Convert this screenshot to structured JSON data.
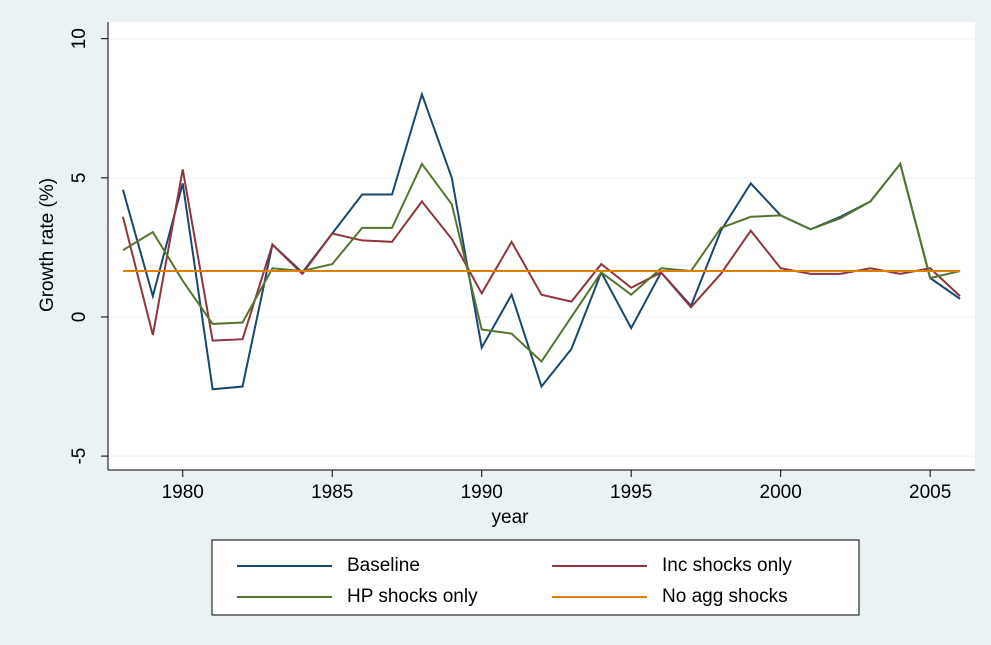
{
  "chart_data": {
    "type": "line",
    "x_label": "year",
    "y_label": "Growth rate (%)",
    "x": [
      1978,
      1979,
      1980,
      1981,
      1982,
      1983,
      1984,
      1985,
      1986,
      1987,
      1988,
      1989,
      1990,
      1991,
      1992,
      1993,
      1994,
      1995,
      1996,
      1997,
      1998,
      1999,
      2000,
      2001,
      2002,
      2003,
      2004,
      2005,
      2006
    ],
    "series": [
      {
        "name": "Baseline",
        "color": "#1a476f",
        "values": [
          4.57,
          0.75,
          4.8,
          -2.6,
          -2.5,
          2.6,
          1.6,
          3.0,
          4.4,
          4.4,
          8.0,
          5.0,
          -1.1,
          0.8,
          -2.5,
          -1.15,
          1.6,
          -0.4,
          1.6,
          0.4,
          3.1,
          4.8,
          3.65,
          3.15,
          3.6,
          4.15,
          5.5,
          1.4,
          0.65
        ]
      },
      {
        "name": "Inc shocks only",
        "color": "#90353b",
        "values": [
          3.6,
          -0.65,
          5.3,
          -0.85,
          -0.8,
          2.6,
          1.55,
          3.0,
          2.75,
          2.7,
          4.15,
          2.8,
          0.85,
          2.7,
          0.8,
          0.55,
          1.9,
          1.05,
          1.6,
          0.35,
          1.55,
          3.1,
          1.75,
          1.55,
          1.55,
          1.75,
          1.55,
          1.75,
          0.75
        ]
      },
      {
        "name": "HP shocks only",
        "color": "#55752f",
        "values": [
          2.4,
          3.05,
          1.3,
          -0.25,
          -0.2,
          1.75,
          1.65,
          1.9,
          3.2,
          3.2,
          5.5,
          4.05,
          -0.45,
          -0.6,
          -1.6,
          0.0,
          1.6,
          0.8,
          1.75,
          1.65,
          3.2,
          3.6,
          3.65,
          3.15,
          3.55,
          4.15,
          5.5,
          1.4,
          1.65
        ]
      },
      {
        "name": "No agg shocks",
        "color": "#e37e00",
        "values": [
          1.65,
          1.65,
          1.65,
          1.65,
          1.65,
          1.65,
          1.65,
          1.65,
          1.65,
          1.65,
          1.65,
          1.65,
          1.65,
          1.65,
          1.65,
          1.65,
          1.65,
          1.65,
          1.65,
          1.65,
          1.65,
          1.65,
          1.65,
          1.65,
          1.65,
          1.65,
          1.65,
          1.65,
          1.65
        ]
      }
    ],
    "xlim": [
      1977.5,
      2006.5
    ],
    "xticks": [
      1980,
      1985,
      1990,
      1995,
      2000,
      2005
    ],
    "ylim": [
      -5.5,
      10.6
    ],
    "yticks": [
      -5,
      0,
      5,
      10
    ],
    "grid": true
  }
}
